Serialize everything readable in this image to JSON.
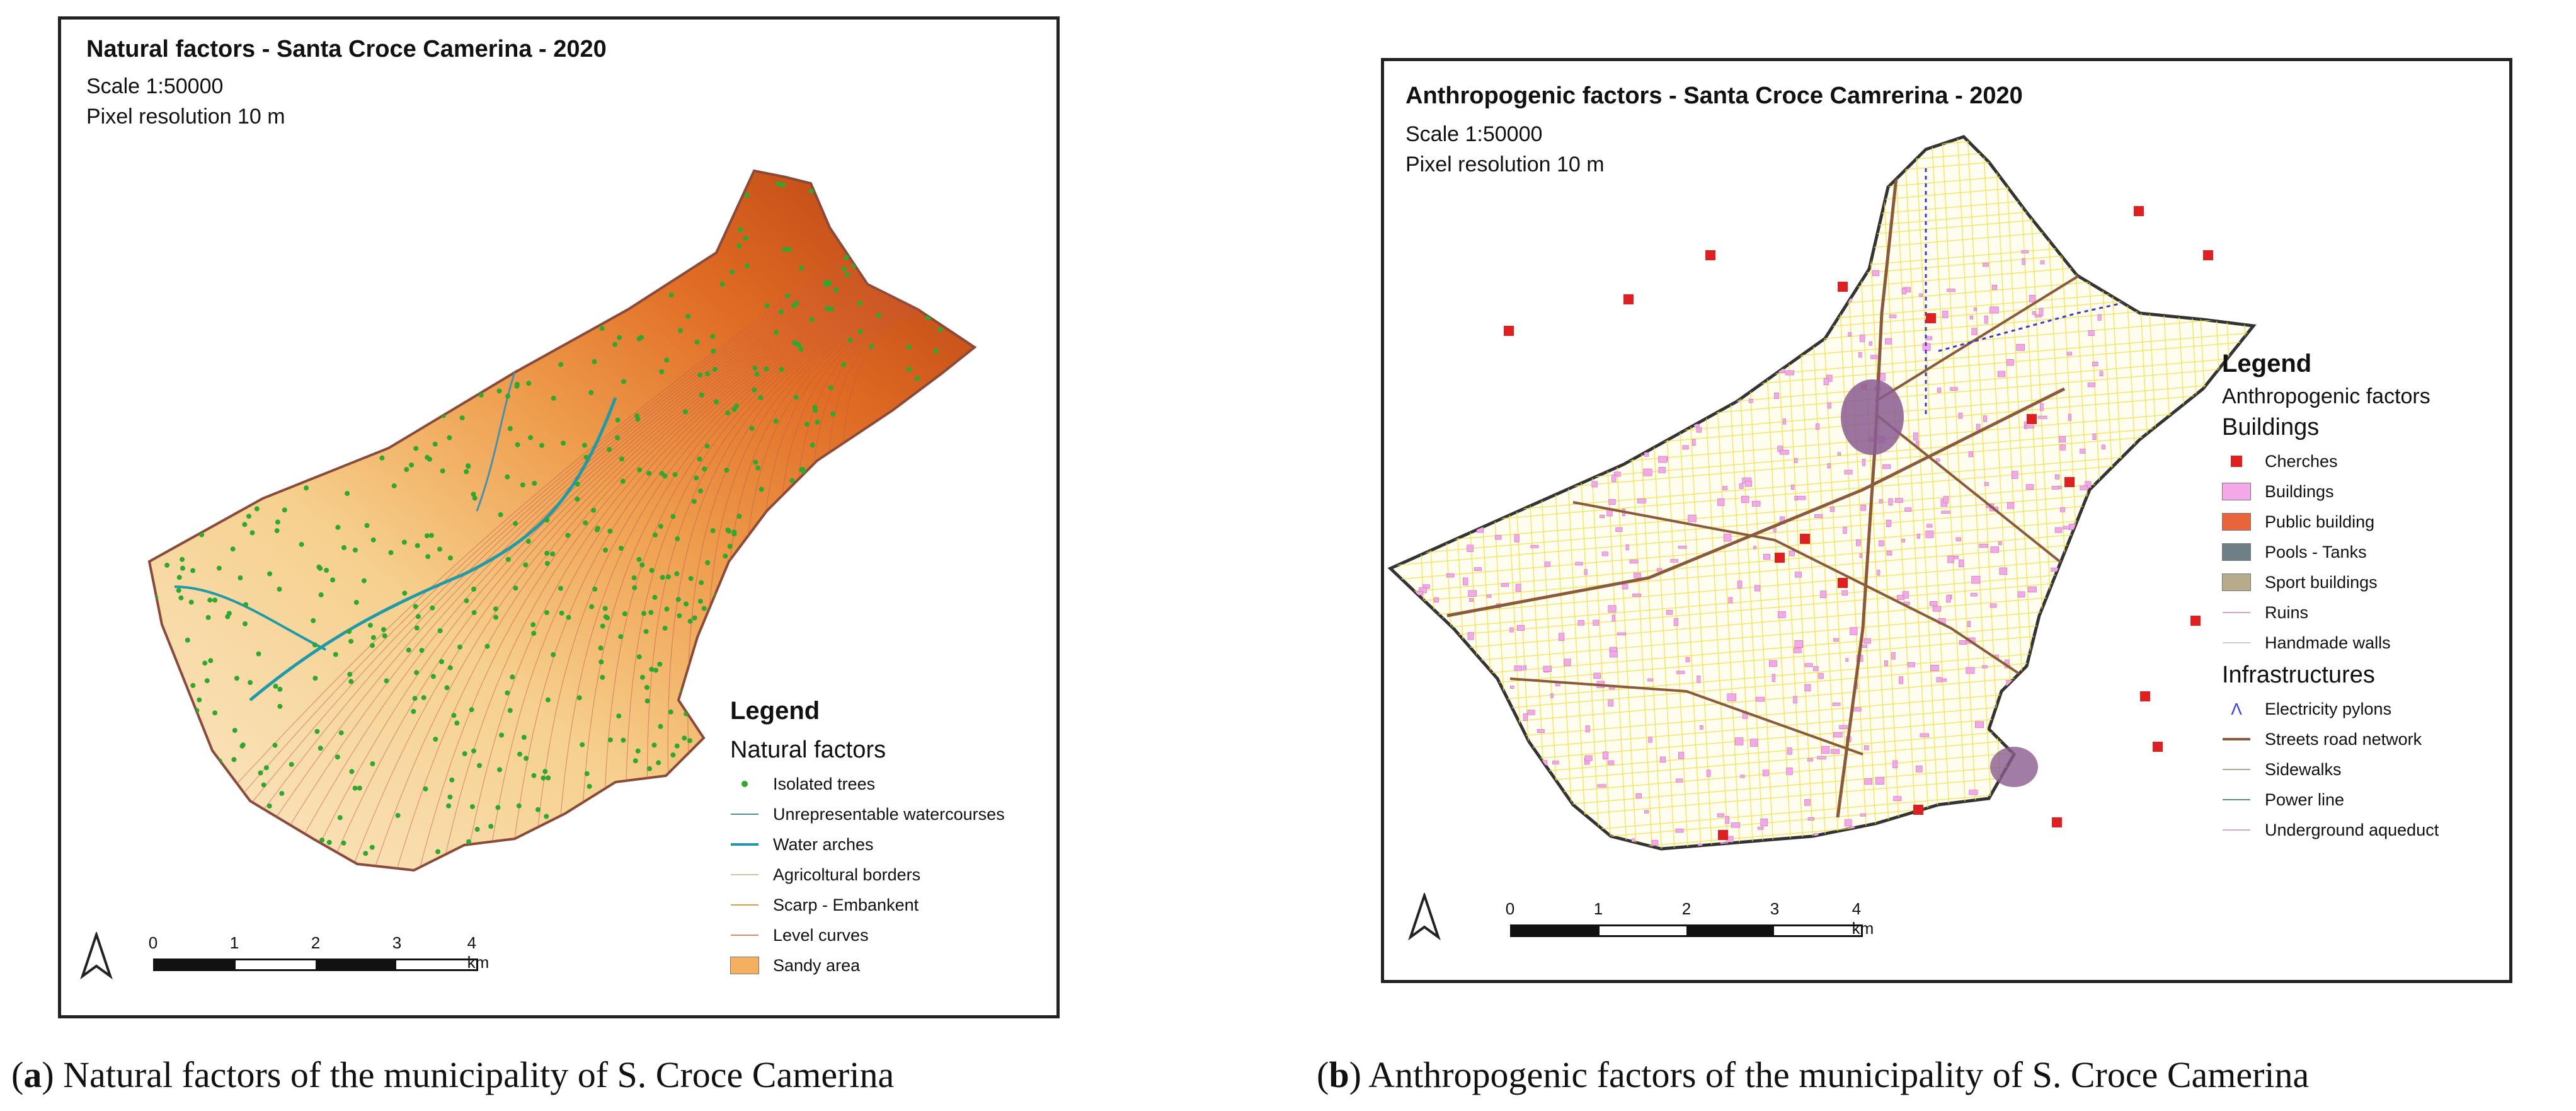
{
  "figure_a": {
    "title": "Natural factors - Santa Croce Camerina - 2020",
    "scale_text": "Scale 1:50000",
    "resolution_text": "Pixel resolution 10 m",
    "legend_title": "Legend",
    "legend_group": "Natural factors",
    "legend_items": [
      {
        "label": "Isolated trees",
        "color": "#2ea82e"
      },
      {
        "label": "Unrepresentable watercourses",
        "color": "#4c8fa8"
      },
      {
        "label": "Water arches",
        "color": "#1f9aa6"
      },
      {
        "label": "Agricoltural borders",
        "color": "#c9c9a0"
      },
      {
        "label": "Scarp - Embankent",
        "color": "#d9a04a"
      },
      {
        "label": "Level curves",
        "color": "#e0876a"
      },
      {
        "label": "Sandy area",
        "color": "#f4b060"
      }
    ],
    "scalebar": [
      "0",
      "1",
      "2",
      "3",
      "4 km"
    ],
    "caption_letter": "a",
    "caption_text": "Natural factors of the municipality of S. Croce Camerina"
  },
  "figure_b": {
    "title": "Anthropogenic factors - Santa Croce Camrerina - 2020",
    "scale_text": "Scale 1:50000",
    "resolution_text": "Pixel resolution 10 m",
    "legend_title": "Legend",
    "legend_subtitle": "Anthropogenic factors",
    "group_buildings": "Buildings",
    "buildings_items": [
      {
        "label": "Cherches",
        "color": "#e02020"
      },
      {
        "label": "Buildings",
        "color": "#f5a8e8"
      },
      {
        "label": "Public building",
        "color": "#e8643a"
      },
      {
        "label": "Pools - Tanks",
        "color": "#6e7f86"
      },
      {
        "label": "Sport buildings",
        "color": "#b8ab8c"
      },
      {
        "label": "Ruins",
        "color": "#d9a0c0"
      },
      {
        "label": "Handmade walls",
        "color": "#cccccc"
      }
    ],
    "group_infra": "Infrastructures",
    "infra_items": [
      {
        "label": "Electricity pylons",
        "color": "#3a3ad0"
      },
      {
        "label": "Streets road network",
        "color": "#8a5a3a"
      },
      {
        "label": "Sidewalks",
        "color": "#b0a890"
      },
      {
        "label": "Power line",
        "color": "#5a8a8a"
      },
      {
        "label": "Underground aqueduct",
        "color": "#d0a8d0"
      }
    ],
    "scalebar": [
      "0",
      "1",
      "2",
      "3",
      "4 km"
    ],
    "caption_letter": "b",
    "caption_text": "Anthropogenic factors of the municipality of S. Croce Camerina"
  }
}
